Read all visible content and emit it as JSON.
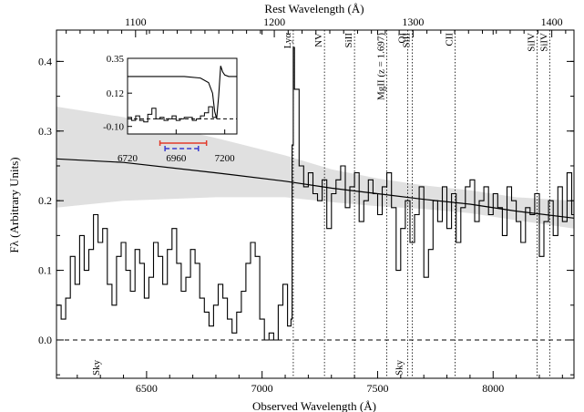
{
  "chart_data": {
    "type": "line",
    "title": "",
    "xlabel": "Observed Wavelength (Å)",
    "ylabel": "Fλ (Arbitrary Units)",
    "top_xlabel": "Rest Wavelength (Å)",
    "xlim": [
      6110,
      8350
    ],
    "ylim": [
      -0.055,
      0.445
    ],
    "top_xlim": [
      1043,
      1416
    ],
    "x_ticks": [
      6500,
      7000,
      7500,
      8000
    ],
    "x_tick_labels": [
      "6500",
      "7000",
      "7500",
      "8000"
    ],
    "y_ticks": [
      0.0,
      0.1,
      0.2,
      0.3,
      0.4
    ],
    "y_tick_labels": [
      "0.0",
      "0.1",
      "0.2",
      "0.3",
      "0.4"
    ],
    "top_ticks": [
      1100,
      1200,
      1300,
      1400
    ],
    "top_tick_labels": [
      "1100",
      "1200",
      "1300",
      "1400"
    ],
    "zero_line": 0.0,
    "spectrum": {
      "x": [
        6110,
        6130,
        6150,
        6170,
        6190,
        6210,
        6230,
        6250,
        6270,
        6290,
        6310,
        6330,
        6350,
        6370,
        6390,
        6410,
        6430,
        6450,
        6470,
        6490,
        6510,
        6530,
        6550,
        6570,
        6590,
        6610,
        6630,
        6650,
        6670,
        6690,
        6710,
        6730,
        6750,
        6770,
        6790,
        6810,
        6830,
        6850,
        6870,
        6890,
        6910,
        6930,
        6950,
        6970,
        6990,
        7010,
        7030,
        7050,
        7070,
        7090,
        7110,
        7125,
        7130,
        7135,
        7140,
        7160,
        7180,
        7200,
        7220,
        7240,
        7260,
        7280,
        7300,
        7320,
        7340,
        7360,
        7380,
        7400,
        7420,
        7440,
        7460,
        7480,
        7500,
        7520,
        7540,
        7560,
        7580,
        7600,
        7620,
        7640,
        7660,
        7680,
        7700,
        7720,
        7740,
        7760,
        7780,
        7800,
        7820,
        7840,
        7860,
        7880,
        7900,
        7920,
        7940,
        7960,
        7980,
        8000,
        8020,
        8040,
        8060,
        8080,
        8100,
        8120,
        8140,
        8160,
        8180,
        8200,
        8220,
        8240,
        8260,
        8280,
        8300,
        8320,
        8340
      ],
      "y": [
        0.05,
        0.03,
        0.06,
        0.12,
        0.08,
        0.15,
        0.1,
        0.13,
        0.18,
        0.14,
        0.16,
        0.08,
        0.05,
        0.12,
        0.14,
        0.1,
        0.07,
        0.13,
        0.11,
        0.06,
        0.09,
        0.14,
        0.12,
        0.08,
        0.13,
        0.16,
        0.11,
        0.07,
        0.09,
        0.13,
        0.11,
        0.06,
        0.04,
        0.02,
        0.05,
        0.08,
        0.06,
        0.03,
        0.01,
        0.04,
        0.07,
        0.11,
        0.14,
        0.12,
        0.03,
        0.0,
        0.01,
        0.0,
        0.05,
        0.08,
        0.02,
        0.03,
        0.28,
        0.42,
        0.36,
        0.25,
        0.22,
        0.24,
        0.21,
        0.2,
        0.23,
        0.16,
        0.21,
        0.23,
        0.25,
        0.19,
        0.22,
        0.24,
        0.17,
        0.2,
        0.23,
        0.21,
        0.18,
        0.22,
        0.24,
        0.19,
        0.1,
        0.16,
        0.2,
        0.14,
        0.18,
        0.22,
        0.09,
        0.13,
        0.2,
        0.17,
        0.22,
        0.16,
        0.21,
        0.14,
        0.19,
        0.22,
        0.23,
        0.17,
        0.2,
        0.22,
        0.18,
        0.21,
        0.19,
        0.15,
        0.22,
        0.2,
        0.17,
        0.14,
        0.19,
        0.18,
        0.21,
        0.12,
        0.17,
        0.2,
        0.15,
        0.22,
        0.17,
        0.24,
        0.18
      ]
    },
    "continuum_model": {
      "x": [
        6110,
        6400,
        6800,
        7100,
        7300,
        7500,
        7700,
        7900,
        8100,
        8350
      ],
      "y": [
        0.26,
        0.255,
        0.24,
        0.228,
        0.218,
        0.21,
        0.202,
        0.195,
        0.185,
        0.175
      ]
    },
    "continuum_band": {
      "x": [
        6110,
        6400,
        6800,
        7100,
        7300,
        7500,
        7700,
        7900,
        8100,
        8350
      ],
      "upper": [
        0.335,
        0.32,
        0.29,
        0.265,
        0.245,
        0.232,
        0.222,
        0.215,
        0.205,
        0.2
      ],
      "lower": [
        0.19,
        0.2,
        0.205,
        0.205,
        0.198,
        0.192,
        0.188,
        0.182,
        0.172,
        0.16
      ]
    },
    "line_markers": [
      {
        "label": "Lyα",
        "x": 7135
      },
      {
        "label": "NV",
        "x": 7270
      },
      {
        "label": "SiII",
        "x": 7400
      },
      {
        "label": "MgII (z = 1.697)",
        "x": 7540
      },
      {
        "label": "OI",
        "x": 7630
      },
      {
        "label": "SiII",
        "x": 7650
      },
      {
        "label": "CII",
        "x": 7835
      },
      {
        "label": "SiIV",
        "x": 8190
      },
      {
        "label": "SiIV",
        "x": 8245
      }
    ],
    "sky_labels": [
      {
        "label": "Sky",
        "x": 6280
      },
      {
        "label": "Sky",
        "x": 7590
      }
    ],
    "inset": {
      "xlim": [
        6720,
        7260
      ],
      "ylim": [
        -0.15,
        0.35
      ],
      "x_ticks": [
        6720,
        6960,
        7200
      ],
      "x_tick_labels": [
        "6720",
        "6960",
        "7200"
      ],
      "y_ticks": [
        -0.1,
        0.12,
        0.35
      ],
      "y_tick_labels": [
        "-0.10",
        "0.12",
        "0.35"
      ],
      "spectrum": {
        "x": [
          6720,
          6740,
          6760,
          6780,
          6800,
          6820,
          6840,
          6860,
          6880,
          6900,
          6920,
          6940,
          6960,
          6980,
          7000,
          7020,
          7040,
          7060,
          7080,
          7100,
          7120,
          7140
        ],
        "y": [
          -0.04,
          -0.06,
          -0.03,
          -0.06,
          -0.07,
          -0.02,
          0.02,
          -0.05,
          -0.04,
          -0.06,
          -0.05,
          -0.03,
          -0.06,
          -0.05,
          -0.04,
          -0.04,
          -0.06,
          -0.05,
          -0.03,
          -0.01,
          0.03,
          -0.04
        ]
      },
      "model": {
        "x": [
          6720,
          6800,
          6900,
          7000,
          7080,
          7120,
          7140,
          7150,
          7160,
          7170,
          7180,
          7190,
          7200,
          7220,
          7260
        ],
        "y": [
          0.23,
          0.23,
          0.23,
          0.23,
          0.22,
          0.19,
          0.12,
          0.0,
          -0.05,
          0.1,
          0.3,
          0.26,
          0.24,
          0.23,
          0.23
        ]
      },
      "dashed_level": -0.05,
      "red_bar": [
        6880,
        7110
      ],
      "blue_dashed_bar": [
        6905,
        7070
      ]
    }
  }
}
